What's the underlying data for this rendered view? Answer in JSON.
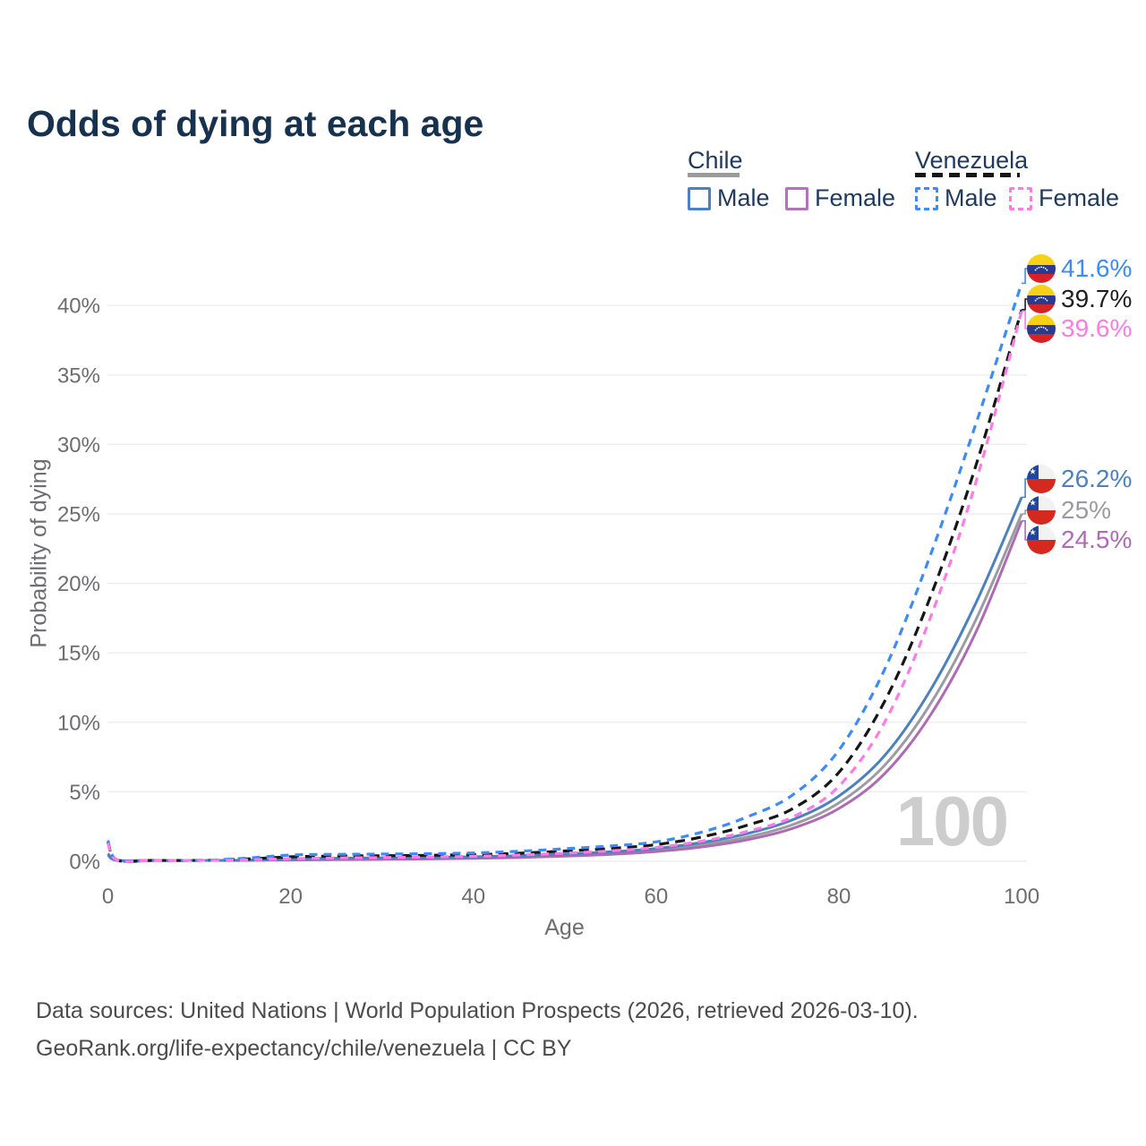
{
  "title": "Odds of dying at each age",
  "watermark": "100",
  "legend": {
    "groups": [
      {
        "label": "Chile",
        "line_style": "solid",
        "underline_color": "#9b9b9b",
        "items": [
          {
            "label": "Male",
            "color": "#4d80c0"
          },
          {
            "label": "Female",
            "color": "#b273ba"
          }
        ]
      },
      {
        "label": "Venezuela",
        "line_style": "dashed",
        "underline_color": "#161616",
        "items": [
          {
            "label": "Male",
            "color": "#3d8bf8"
          },
          {
            "label": "Female",
            "color": "#fb7ce4"
          }
        ]
      }
    ]
  },
  "end_labels": [
    {
      "value": "41.6%",
      "series": "Venezuela Male",
      "color": "#3d8bf8",
      "flag": "venezuela"
    },
    {
      "value": "39.7%",
      "series": "Venezuela Both sexes",
      "color": "#1f1f1f",
      "flag": "venezuela"
    },
    {
      "value": "39.6%",
      "series": "Venezuela Female",
      "color": "#fb7ce4",
      "flag": "venezuela"
    },
    {
      "value": "26.2%",
      "series": "Chile Male",
      "color": "#4d80c0",
      "flag": "chile"
    },
    {
      "value": "25%",
      "series": "Chile Both sexes",
      "color": "#9b9ba0",
      "flag": "chile"
    },
    {
      "value": "24.5%",
      "series": "Chile Female",
      "color": "#ac6bb3",
      "flag": "chile"
    }
  ],
  "footer": {
    "line1": "Data sources: United Nations | World Population Prospects (2026, retrieved 2026-03-10).",
    "line2": "GeoRank.org/life-expectancy/chile/venezuela | CC BY"
  },
  "chart_data": {
    "type": "line",
    "title": "Odds of dying at each age",
    "xlabel": "Age",
    "ylabel": "Probability of dying",
    "xlim": [
      0,
      100
    ],
    "ylim": [
      0,
      43
    ],
    "grid": "horizontal",
    "legend_position": "top-right",
    "xticks": {
      "values": [
        0,
        20,
        40,
        60,
        80,
        100
      ],
      "labels": [
        "0",
        "20",
        "40",
        "60",
        "80",
        "100"
      ]
    },
    "yticks": {
      "values": [
        0,
        5,
        10,
        15,
        20,
        25,
        30,
        35,
        40
      ],
      "labels": [
        "0%",
        "5%",
        "10%",
        "15%",
        "20%",
        "25%",
        "30%",
        "35%",
        "40%"
      ]
    },
    "x_ages": [
      0,
      1,
      5,
      10,
      15,
      20,
      25,
      30,
      35,
      40,
      45,
      50,
      55,
      60,
      65,
      70,
      75,
      80,
      85,
      90,
      95,
      100
    ],
    "series": [
      {
        "name": "Chile Both sexes",
        "country": "Chile",
        "sex": "Both",
        "line": "solid",
        "color": "#9b9ba0",
        "end_value_pct": 25.0,
        "values": [
          0.5,
          0.045,
          0.02,
          0.025,
          0.06,
          0.13,
          0.17,
          0.19,
          0.22,
          0.26,
          0.33,
          0.44,
          0.58,
          0.8,
          1.18,
          1.75,
          2.65,
          4.2,
          6.9,
          11.3,
          17.4,
          25.0
        ]
      },
      {
        "name": "Chile Female",
        "country": "Chile",
        "sex": "Female",
        "line": "solid",
        "color": "#ac6bb3",
        "end_value_pct": 24.5,
        "values": [
          0.45,
          0.04,
          0.02,
          0.02,
          0.05,
          0.09,
          0.12,
          0.14,
          0.17,
          0.21,
          0.27,
          0.37,
          0.5,
          0.7,
          1.03,
          1.55,
          2.38,
          3.8,
          6.3,
          10.5,
          16.5,
          24.5
        ]
      },
      {
        "name": "Chile Male",
        "country": "Chile",
        "sex": "Male",
        "line": "solid",
        "color": "#4d80c0",
        "end_value_pct": 26.2,
        "values": [
          0.55,
          0.05,
          0.02,
          0.03,
          0.08,
          0.18,
          0.22,
          0.25,
          0.28,
          0.32,
          0.4,
          0.52,
          0.68,
          0.92,
          1.35,
          2.0,
          3.0,
          4.7,
          7.6,
          12.3,
          18.6,
          26.2
        ]
      },
      {
        "name": "Venezuela Both sexes",
        "country": "Venezuela",
        "sex": "Both",
        "line": "dashed",
        "color": "#161616",
        "end_value_pct": 39.7,
        "values": [
          1.4,
          0.09,
          0.04,
          0.05,
          0.16,
          0.32,
          0.38,
          0.4,
          0.43,
          0.48,
          0.58,
          0.74,
          0.92,
          1.2,
          1.75,
          2.6,
          3.8,
          6.4,
          11.5,
          19.0,
          28.5,
          39.7
        ]
      },
      {
        "name": "Venezuela Male",
        "country": "Venezuela",
        "sex": "Male",
        "line": "dashed",
        "color": "#3d8bf8",
        "end_value_pct": 41.6,
        "values": [
          1.5,
          0.1,
          0.05,
          0.06,
          0.22,
          0.45,
          0.5,
          0.52,
          0.55,
          0.6,
          0.72,
          0.9,
          1.1,
          1.4,
          2.1,
          3.2,
          4.8,
          8.0,
          13.8,
          22.0,
          31.5,
          41.6
        ]
      },
      {
        "name": "Venezuela Female",
        "country": "Venezuela",
        "sex": "Female",
        "line": "dashed",
        "color": "#fb7ce4",
        "end_value_pct": 39.6,
        "values": [
          1.3,
          0.08,
          0.04,
          0.05,
          0.1,
          0.18,
          0.24,
          0.27,
          0.31,
          0.36,
          0.45,
          0.58,
          0.75,
          1.0,
          1.45,
          2.15,
          3.2,
          5.4,
          10.0,
          17.5,
          27.3,
          39.6
        ]
      }
    ]
  }
}
